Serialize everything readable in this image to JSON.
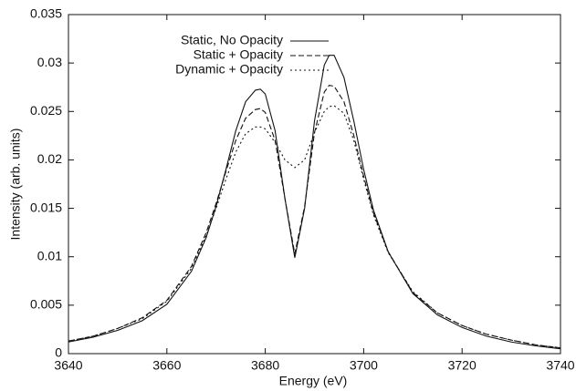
{
  "chart_data": {
    "type": "line",
    "xlabel": "Energy (eV)",
    "ylabel": "Intensity (arb. units)",
    "x": [
      3640,
      3645,
      3650,
      3655,
      3660,
      3665,
      3668,
      3670,
      3672,
      3674,
      3676,
      3678,
      3679,
      3680,
      3682,
      3684,
      3686,
      3688,
      3690,
      3692,
      3693,
      3694,
      3696,
      3698,
      3700,
      3702,
      3705,
      3710,
      3715,
      3720,
      3725,
      3730,
      3735,
      3740
    ],
    "series": [
      {
        "name": "Static, No Opacity",
        "color": "#111111",
        "dash": "solid",
        "values": [
          0.0012,
          0.0017,
          0.0024,
          0.0034,
          0.0051,
          0.0085,
          0.012,
          0.0152,
          0.019,
          0.023,
          0.026,
          0.0272,
          0.0273,
          0.0268,
          0.023,
          0.016,
          0.0099,
          0.015,
          0.024,
          0.0298,
          0.0308,
          0.0308,
          0.0285,
          0.024,
          0.019,
          0.0148,
          0.0105,
          0.0062,
          0.004,
          0.0027,
          0.0018,
          0.0012,
          0.0008,
          0.0005
        ]
      },
      {
        "name": "Static + Opacity",
        "color": "#111111",
        "dash": "dashed",
        "values": [
          0.0013,
          0.0018,
          0.0026,
          0.0037,
          0.0055,
          0.009,
          0.0125,
          0.0155,
          0.0188,
          0.022,
          0.0243,
          0.0252,
          0.0253,
          0.0249,
          0.022,
          0.016,
          0.0103,
          0.0152,
          0.0228,
          0.027,
          0.0277,
          0.0276,
          0.026,
          0.0225,
          0.0183,
          0.0145,
          0.0105,
          0.0063,
          0.0042,
          0.0029,
          0.002,
          0.0014,
          0.0009,
          0.0006
        ]
      },
      {
        "name": "Dynamic + Opacity",
        "color": "#111111",
        "dash": "dotted",
        "values": [
          0.0013,
          0.0018,
          0.0026,
          0.0036,
          0.0054,
          0.0088,
          0.0122,
          0.015,
          0.018,
          0.0208,
          0.0227,
          0.0234,
          0.0234,
          0.0232,
          0.0218,
          0.02,
          0.0192,
          0.02,
          0.0228,
          0.025,
          0.0255,
          0.0256,
          0.0248,
          0.022,
          0.018,
          0.0143,
          0.0104,
          0.0064,
          0.0042,
          0.0029,
          0.002,
          0.0014,
          0.0009,
          0.0006
        ]
      }
    ],
    "xlim": [
      3640,
      3740
    ],
    "xticks": [
      3640,
      3660,
      3680,
      3700,
      3720,
      3740
    ],
    "ylim": [
      0,
      0.035
    ],
    "yticks": [
      0,
      0.005,
      0.01,
      0.015,
      0.02,
      0.025,
      0.03,
      0.035
    ],
    "legend": "upper left"
  }
}
